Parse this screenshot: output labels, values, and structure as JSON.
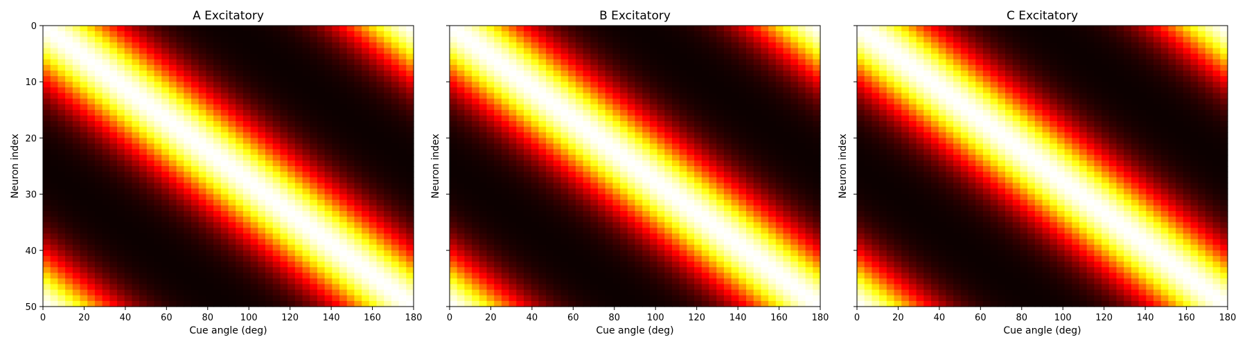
{
  "chart_data": [
    {
      "type": "heatmap",
      "title": "A Excitatory",
      "xlabel": "Cue angle (deg)",
      "ylabel": "Neuron index",
      "xlim": [
        0,
        180
      ],
      "ylim": [
        50,
        0
      ],
      "xticks": [
        "0",
        "20",
        "40",
        "60",
        "80",
        "100",
        "120",
        "140",
        "160",
        "180"
      ],
      "yticks": [
        "0",
        "10",
        "20",
        "30",
        "40",
        "50"
      ],
      "show_yticklabels": true,
      "n_neurons": 50,
      "n_angles": 50,
      "tuning_width_deg": 25,
      "colormap": "hot",
      "grid": false
    },
    {
      "type": "heatmap",
      "title": "B Excitatory",
      "xlabel": "Cue angle (deg)",
      "ylabel": "Neuron index",
      "xlim": [
        0,
        180
      ],
      "ylim": [
        50,
        0
      ],
      "xticks": [
        "0",
        "20",
        "40",
        "60",
        "80",
        "100",
        "120",
        "140",
        "160",
        "180"
      ],
      "yticks": [],
      "show_yticklabels": false,
      "n_neurons": 50,
      "n_angles": 50,
      "tuning_width_deg": 25,
      "colormap": "hot",
      "grid": false
    },
    {
      "type": "heatmap",
      "title": "C Excitatory",
      "xlabel": "Cue angle (deg)",
      "ylabel": "Neuron index",
      "xlim": [
        0,
        180
      ],
      "ylim": [
        50,
        0
      ],
      "xticks": [
        "0",
        "20",
        "40",
        "60",
        "80",
        "100",
        "120",
        "140",
        "160",
        "180"
      ],
      "yticks": [],
      "show_yticklabels": false,
      "n_neurons": 50,
      "n_angles": 50,
      "tuning_width_deg": 25,
      "colormap": "hot",
      "grid": false
    }
  ]
}
